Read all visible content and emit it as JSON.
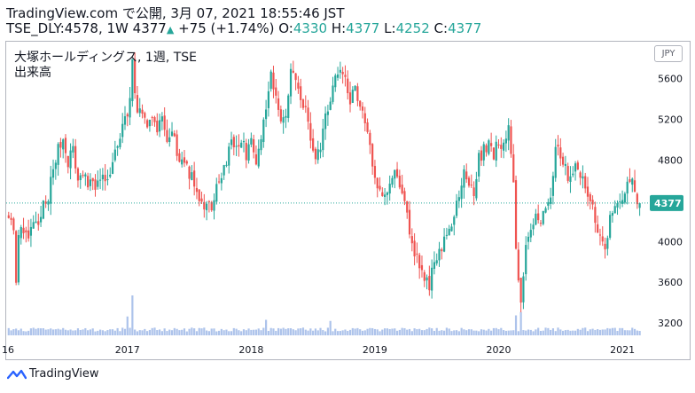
{
  "header": {
    "line1": "TradingView.com で公開, 3月 07, 2021 18:55:46 JST",
    "symbol": "TSE_DLY:4578, 1W",
    "last": "4377",
    "change": "+75 (+1.74%)",
    "o_label": "O:",
    "o_value": "4330",
    "h_label": "H:",
    "h_value": "4377",
    "l_label": "L:",
    "l_value": "4252",
    "c_label": "C:",
    "c_value": "4377"
  },
  "legend": {
    "title": "大塚ホールディングス, 1週, TSE",
    "volume": "出来高"
  },
  "currency": "JPY",
  "footer": {
    "brand": "TradingView"
  },
  "colors": {
    "up": "#26a69a",
    "down": "#ef5350",
    "volume": "#9fb8e8",
    "price_line": "#26a69a",
    "axis_text": "#131722"
  },
  "chart_data": {
    "type": "candlestick",
    "title": "大塚ホールディングス, 1週, TSE",
    "xlabel": "",
    "ylabel": "",
    "ylim": [
      3080,
      5960
    ],
    "y_ticks": [
      3200,
      3600,
      4000,
      4400,
      4800,
      5200,
      5600
    ],
    "x_tick_labels": [
      "16",
      "2017",
      "2018",
      "2019",
      "2020",
      "2021"
    ],
    "x_tick_weeks": [
      -1,
      48,
      98,
      148,
      198,
      248
    ],
    "x_range_weeks": [
      -1,
      258
    ],
    "last_price": 4377,
    "grid": false,
    "anchors_week_close": [
      [
        0,
        4300
      ],
      [
        2,
        4150
      ],
      [
        3,
        3550
      ],
      [
        4,
        4050
      ],
      [
        6,
        4150
      ],
      [
        8,
        4000
      ],
      [
        10,
        4200
      ],
      [
        12,
        4100
      ],
      [
        14,
        4400
      ],
      [
        16,
        4450
      ],
      [
        18,
        4700
      ],
      [
        20,
        4900
      ],
      [
        22,
        5000
      ],
      [
        24,
        4800
      ],
      [
        26,
        4900
      ],
      [
        28,
        4600
      ],
      [
        30,
        4700
      ],
      [
        32,
        4500
      ],
      [
        34,
        4600
      ],
      [
        36,
        4550
      ],
      [
        38,
        4700
      ],
      [
        40,
        4600
      ],
      [
        42,
        4800
      ],
      [
        44,
        4900
      ],
      [
        46,
        5150
      ],
      [
        48,
        5200
      ],
      [
        50,
        5750
      ],
      [
        52,
        5300
      ],
      [
        54,
        5200
      ],
      [
        56,
        5100
      ],
      [
        58,
        5200
      ],
      [
        60,
        5050
      ],
      [
        62,
        5200
      ],
      [
        64,
        5000
      ],
      [
        66,
        5050
      ],
      [
        68,
        4900
      ],
      [
        70,
        4800
      ],
      [
        72,
        4700
      ],
      [
        74,
        4650
      ],
      [
        76,
        4500
      ],
      [
        78,
        4350
      ],
      [
        80,
        4400
      ],
      [
        82,
        4300
      ],
      [
        84,
        4500
      ],
      [
        86,
        4600
      ],
      [
        88,
        4800
      ],
      [
        90,
        4950
      ],
      [
        92,
        4900
      ],
      [
        94,
        5000
      ],
      [
        96,
        4850
      ],
      [
        98,
        4950
      ],
      [
        100,
        4800
      ],
      [
        102,
        5000
      ],
      [
        104,
        5300
      ],
      [
        106,
        5650
      ],
      [
        108,
        5450
      ],
      [
        110,
        5200
      ],
      [
        112,
        5300
      ],
      [
        114,
        5650
      ],
      [
        116,
        5550
      ],
      [
        118,
        5400
      ],
      [
        120,
        5300
      ],
      [
        122,
        5000
      ],
      [
        124,
        4800
      ],
      [
        126,
        4900
      ],
      [
        128,
        5250
      ],
      [
        130,
        5400
      ],
      [
        132,
        5600
      ],
      [
        134,
        5700
      ],
      [
        136,
        5600
      ],
      [
        138,
        5400
      ],
      [
        140,
        5500
      ],
      [
        142,
        5300
      ],
      [
        144,
        5200
      ],
      [
        146,
        4950
      ],
      [
        148,
        4650
      ],
      [
        150,
        4500
      ],
      [
        152,
        4450
      ],
      [
        154,
        4600
      ],
      [
        156,
        4700
      ],
      [
        158,
        4500
      ],
      [
        160,
        4400
      ],
      [
        162,
        4100
      ],
      [
        164,
        3900
      ],
      [
        166,
        3800
      ],
      [
        168,
        3650
      ],
      [
        170,
        3550
      ],
      [
        172,
        3800
      ],
      [
        174,
        3900
      ],
      [
        176,
        4000
      ],
      [
        178,
        4100
      ],
      [
        180,
        4300
      ],
      [
        182,
        4450
      ],
      [
        184,
        4750
      ],
      [
        186,
        4600
      ],
      [
        188,
        4500
      ],
      [
        190,
        4800
      ],
      [
        192,
        4900
      ],
      [
        194,
        4950
      ],
      [
        196,
        4850
      ],
      [
        198,
        5000
      ],
      [
        200,
        4900
      ],
      [
        202,
        5100
      ],
      [
        204,
        4650
      ],
      [
        205,
        3950
      ],
      [
        207,
        3350
      ],
      [
        208,
        3600
      ],
      [
        209,
        4000
      ],
      [
        211,
        4150
      ],
      [
        213,
        4300
      ],
      [
        215,
        4200
      ],
      [
        217,
        4350
      ],
      [
        219,
        4400
      ],
      [
        221,
        4900
      ],
      [
        223,
        4850
      ],
      [
        225,
        4700
      ],
      [
        227,
        4600
      ],
      [
        229,
        4800
      ],
      [
        231,
        4650
      ],
      [
        233,
        4550
      ],
      [
        235,
        4450
      ],
      [
        237,
        4200
      ],
      [
        239,
        4050
      ],
      [
        241,
        3900
      ],
      [
        243,
        4200
      ],
      [
        245,
        4350
      ],
      [
        247,
        4400
      ],
      [
        249,
        4500
      ],
      [
        251,
        4550
      ],
      [
        252,
        4650
      ],
      [
        253,
        4450
      ],
      [
        254,
        4300
      ],
      [
        255,
        4377
      ]
    ],
    "volume_spikes_week": [
      [
        50,
        3.6
      ],
      [
        48,
        1.7
      ],
      [
        104,
        1.4
      ],
      [
        130,
        1.3
      ],
      [
        205,
        1.8
      ],
      [
        207,
        2.1
      ]
    ]
  }
}
